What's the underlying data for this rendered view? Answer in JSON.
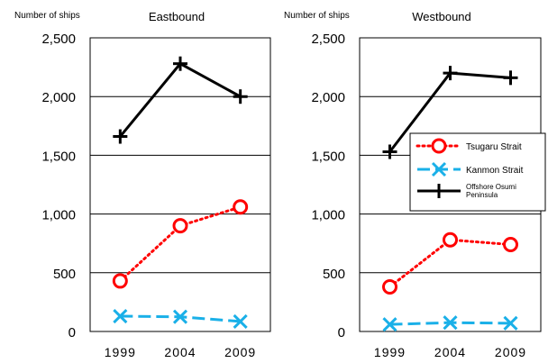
{
  "chart_data": [
    {
      "type": "line",
      "title": "Eastbound",
      "ylabel": "Number of ships",
      "xlabel": "",
      "categories": [
        "1999",
        "2004",
        "2009"
      ],
      "yticks": [
        "0",
        "500",
        "1,000",
        "1,500",
        "2,000",
        "2,500"
      ],
      "ylim": [
        0,
        2500
      ],
      "grid": "horizontal",
      "series": [
        {
          "name": "Tsugaru Strait",
          "values": [
            430,
            900,
            1060
          ],
          "color": "#ff0000",
          "marker": "circle",
          "line": "dotted"
        },
        {
          "name": "Kanmon Strait",
          "values": [
            130,
            125,
            85
          ],
          "color": "#1ab0e8",
          "marker": "x",
          "line": "dashed"
        },
        {
          "name": "Offshore Osumi Peninsula",
          "values": [
            1660,
            2280,
            2000
          ],
          "color": "#000000",
          "marker": "plus",
          "line": "solid"
        }
      ]
    },
    {
      "type": "line",
      "title": "Westbound",
      "ylabel": "Number of ships",
      "xlabel": "",
      "categories": [
        "1999",
        "2004",
        "2009"
      ],
      "yticks": [
        "0",
        "500",
        "1,000",
        "1,500",
        "2,000",
        "2,500"
      ],
      "ylim": [
        0,
        2500
      ],
      "grid": "horizontal",
      "legend": "right",
      "series": [
        {
          "name": "Tsugaru Strait",
          "values": [
            380,
            780,
            740
          ],
          "color": "#ff0000",
          "marker": "circle",
          "line": "dotted"
        },
        {
          "name": "Kanmon Strait",
          "values": [
            60,
            75,
            70
          ],
          "color": "#1ab0e8",
          "marker": "x",
          "line": "dashed"
        },
        {
          "name": "Offshore Osumi Peninsula",
          "values": [
            1530,
            2200,
            2160
          ],
          "color": "#000000",
          "marker": "plus",
          "line": "solid"
        }
      ]
    }
  ]
}
